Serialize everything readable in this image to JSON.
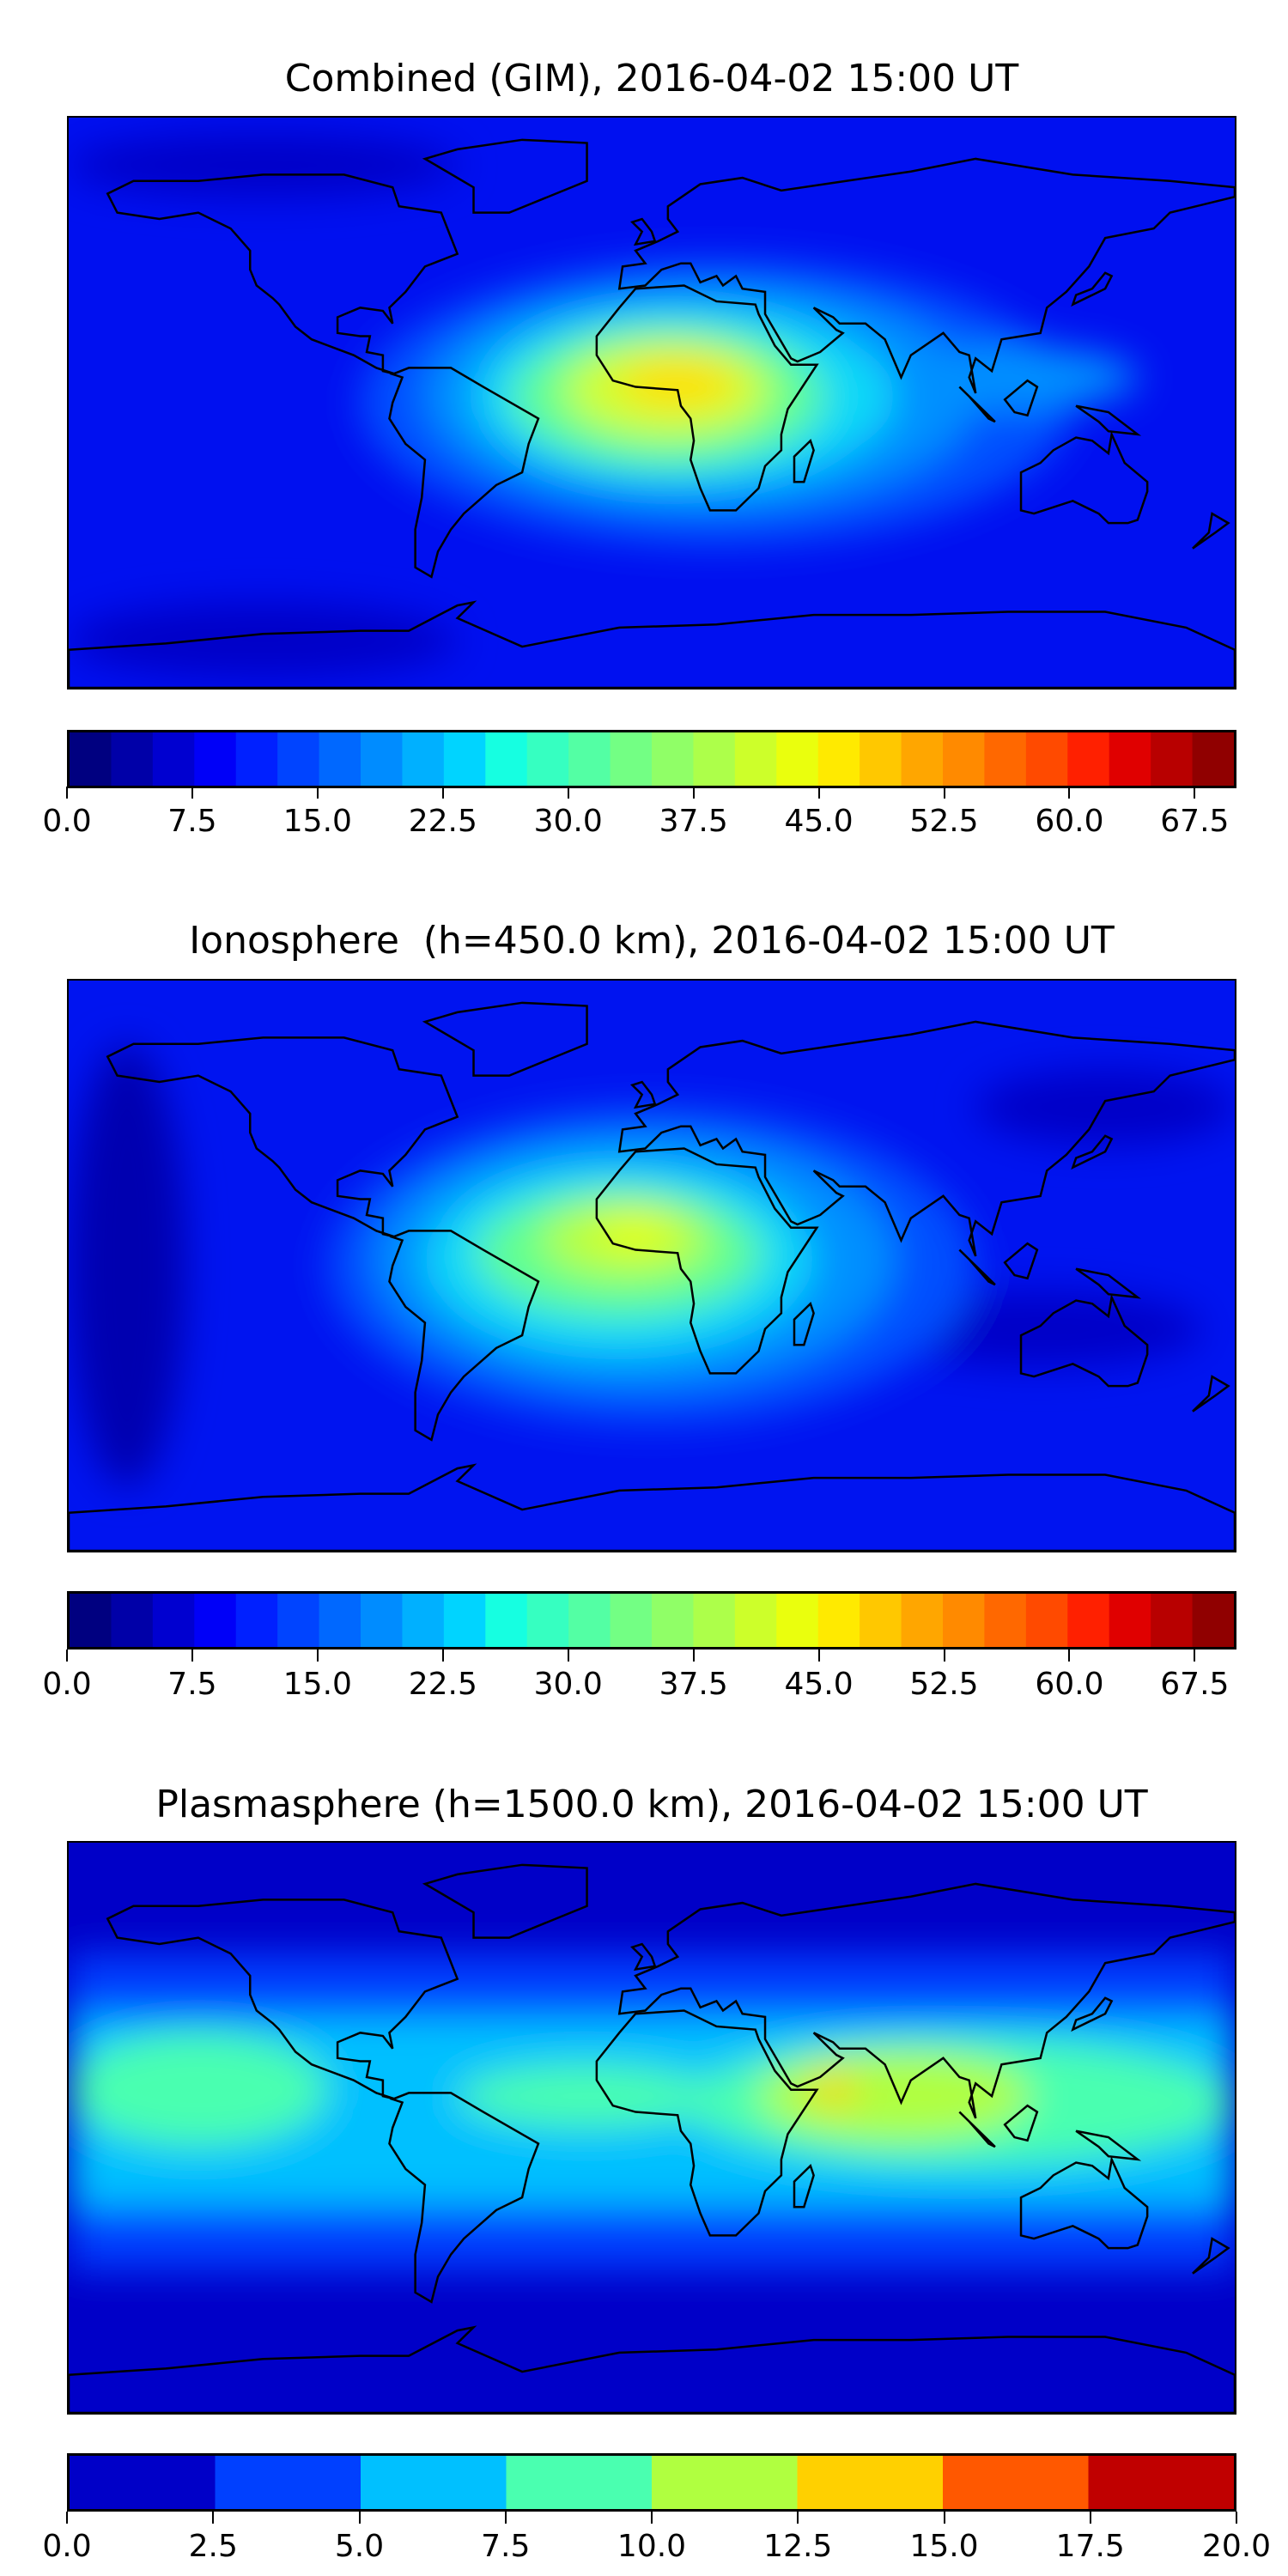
{
  "chart_data": [
    {
      "type": "heatmap",
      "title": "Combined (GIM), 2016-04-02 15:00 UT",
      "projection": "equirectangular world map with coastlines",
      "colorbar": {
        "range": [
          0,
          70
        ],
        "step": 2.5,
        "ticks": [
          "0.0",
          "7.5",
          "15.0",
          "22.5",
          "30.0",
          "37.5",
          "45.0",
          "52.5",
          "60.0",
          "67.5"
        ],
        "colors": [
          "#000080",
          "#0000a8",
          "#0000d0",
          "#0000f8",
          "#0020ff",
          "#0044ff",
          "#0068ff",
          "#008cff",
          "#00b0ff",
          "#00d4ff",
          "#16ffe1",
          "#36ffc1",
          "#53ffa4",
          "#73ff84",
          "#90ff67",
          "#adff4a",
          "#cdff2a",
          "#eaff0d",
          "#ffea00",
          "#ffc800",
          "#ffa600",
          "#ff8a00",
          "#ff6800",
          "#ff4a00",
          "#ff2000",
          "#e00000",
          "#b80000",
          "#900000"
        ]
      },
      "peak": {
        "lon": 10,
        "lat": 5,
        "value": 47.5
      }
    },
    {
      "type": "heatmap",
      "title": "Ionosphere  (h=450.0 km), 2016-04-02 15:00 UT",
      "projection": "equirectangular world map with coastlines",
      "colorbar": {
        "range": [
          0,
          70
        ],
        "step": 2.5,
        "ticks": [
          "0.0",
          "7.5",
          "15.0",
          "22.5",
          "30.0",
          "37.5",
          "45.0",
          "52.5",
          "60.0",
          "67.5"
        ],
        "colors": [
          "#000080",
          "#0000a8",
          "#0000d0",
          "#0000f8",
          "#0020ff",
          "#0044ff",
          "#0068ff",
          "#008cff",
          "#00b0ff",
          "#00d4ff",
          "#16ffe1",
          "#36ffc1",
          "#53ffa4",
          "#73ff84",
          "#90ff67",
          "#adff4a",
          "#cdff2a",
          "#eaff0d",
          "#ffea00",
          "#ffc800",
          "#ffa600",
          "#ff8a00",
          "#ff6800",
          "#ff4a00",
          "#ff2000",
          "#e00000",
          "#b80000",
          "#900000"
        ]
      },
      "peak": {
        "lon": 0,
        "lat": 10,
        "value": 42.5
      }
    },
    {
      "type": "heatmap",
      "title": "Plasmasphere (h=1500.0 km), 2016-04-02 15:00 UT",
      "projection": "equirectangular world map with coastlines",
      "colorbar": {
        "range": [
          0,
          20
        ],
        "step": 2.5,
        "ticks": [
          "0.0",
          "2.5",
          "5.0",
          "7.5",
          "10.0",
          "12.5",
          "15.0",
          "17.5",
          "20.0"
        ],
        "colors": [
          "#0000c8",
          "#0040ff",
          "#00c0ff",
          "#4affb0",
          "#b0ff40",
          "#ffd000",
          "#ff5800",
          "#c00000"
        ]
      },
      "peak": {
        "lon": 55,
        "lat": 12,
        "value": 13.75
      }
    }
  ]
}
